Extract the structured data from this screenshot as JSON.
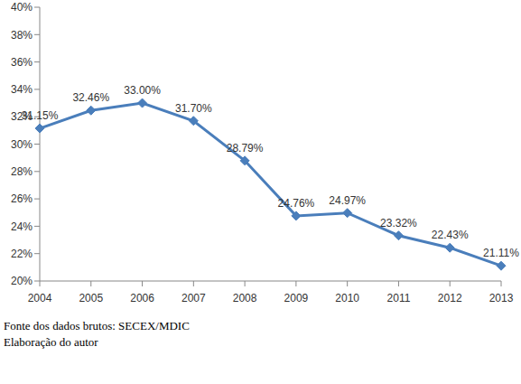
{
  "chart_data": {
    "type": "line",
    "categories": [
      "2004",
      "2005",
      "2006",
      "2007",
      "2008",
      "2009",
      "2010",
      "2011",
      "2012",
      "2013"
    ],
    "values": [
      31.15,
      32.46,
      33.0,
      31.7,
      28.79,
      24.76,
      24.97,
      23.32,
      22.43,
      21.11
    ],
    "value_labels": [
      "31.15%",
      "32.46%",
      "33.00%",
      "31.70%",
      "28.79%",
      "24.76%",
      "24.97%",
      "23.32%",
      "22.43%",
      "21.11%"
    ],
    "color": "#4a7ebb",
    "marker": "diamond",
    "data_labels": true,
    "grid": false,
    "ylim": [
      20,
      40
    ],
    "yticks": [
      {
        "value": 20,
        "label": "20%"
      },
      {
        "value": 22,
        "label": "22%"
      },
      {
        "value": 24,
        "label": "24%"
      },
      {
        "value": 26,
        "label": "26%"
      },
      {
        "value": 28,
        "label": "28%"
      },
      {
        "value": 30,
        "label": "30%"
      },
      {
        "value": 32,
        "label": "32%"
      },
      {
        "value": 34,
        "label": "34%"
      },
      {
        "value": 36,
        "label": "36%"
      },
      {
        "value": 38,
        "label": "38%"
      },
      {
        "value": 40,
        "label": "40%"
      }
    ],
    "annotations": [
      "Fonte dos dados brutos: SECEX/MDIC",
      "Elaboração do autor"
    ]
  }
}
